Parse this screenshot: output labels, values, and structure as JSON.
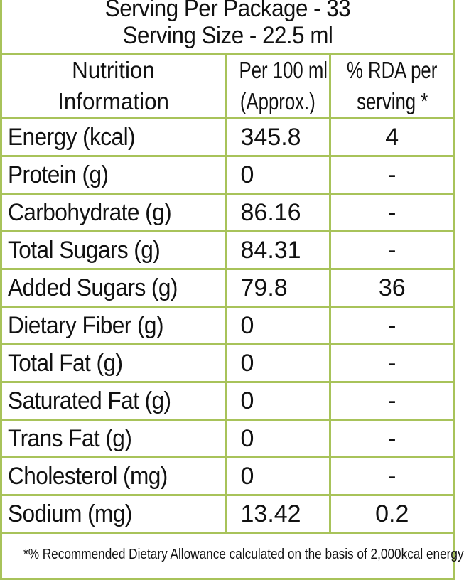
{
  "serving": {
    "per_package": "Serving Per Package - 33",
    "size": "Serving Size - 22.5 ml"
  },
  "table": {
    "headers": {
      "name_line1": "Nutrition",
      "name_line2": "Information",
      "per100_line1": "Per 100 ml",
      "per100_line2": "(Approx.)",
      "rda_line1": "% RDA per",
      "rda_line2": "serving *"
    },
    "rows": [
      {
        "name": "Energy (kcal)",
        "value": "345.8",
        "rda": "4"
      },
      {
        "name": "Protein (g)",
        "value": "0",
        "rda": "-"
      },
      {
        "name": "Carbohydrate (g)",
        "value": "86.16",
        "rda": "-"
      },
      {
        "name": "Total Sugars (g)",
        "value": "84.31",
        "rda": "-"
      },
      {
        "name": "Added Sugars (g)",
        "value": "79.8",
        "rda": "36"
      },
      {
        "name": "Dietary Fiber (g)",
        "value": "0",
        "rda": "-"
      },
      {
        "name": "Total Fat (g)",
        "value": "0",
        "rda": "-"
      },
      {
        "name": "Saturated Fat (g)",
        "value": "0",
        "rda": "-"
      },
      {
        "name": "Trans Fat (g)",
        "value": "0",
        "rda": "-"
      },
      {
        "name": "Cholesterol (mg)",
        "value": "0",
        "rda": "-"
      },
      {
        "name": "Sodium (mg)",
        "value": "13.42",
        "rda": "0.2"
      }
    ]
  },
  "footnote": "*% Recommended Dietary Allowance calculated on the basis of 2,000kcal energy",
  "colors": {
    "border": "#a8c35a",
    "text": "#111111",
    "background": "#ffffff"
  }
}
